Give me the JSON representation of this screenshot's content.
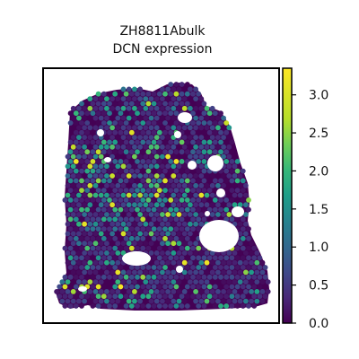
{
  "chart_data": {
    "type": "heatmap",
    "subtype": "spatial-hex-scatter",
    "title_lines": [
      "ZH8811Abulk",
      "DCN expression"
    ],
    "xlabel": "",
    "ylabel": "",
    "axes_ticks_visible": false,
    "grid": false,
    "legend": "colorbar-right",
    "colormap": "viridis",
    "color_range": [
      0.0,
      3.35
    ],
    "colorbar_ticks": [
      "0.0",
      "0.5",
      "1.0",
      "1.5",
      "2.0",
      "2.5",
      "3.0"
    ],
    "colorbar_tick_values": [
      0.0,
      0.5,
      1.0,
      1.5,
      2.0,
      2.5,
      3.0
    ],
    "tissue_background_value": 0.0,
    "approx_spot_count": 1400,
    "spots_note": "Per-spot values are not individually readable; the tissue is densely covered by hexagonal spots, predominantly low values (0.0-0.8), with scattered mid values (1.2-2.2) concentrated in the left-central region and sparse high values (2.5-3.3) near the upper-left and lower-left."
  }
}
